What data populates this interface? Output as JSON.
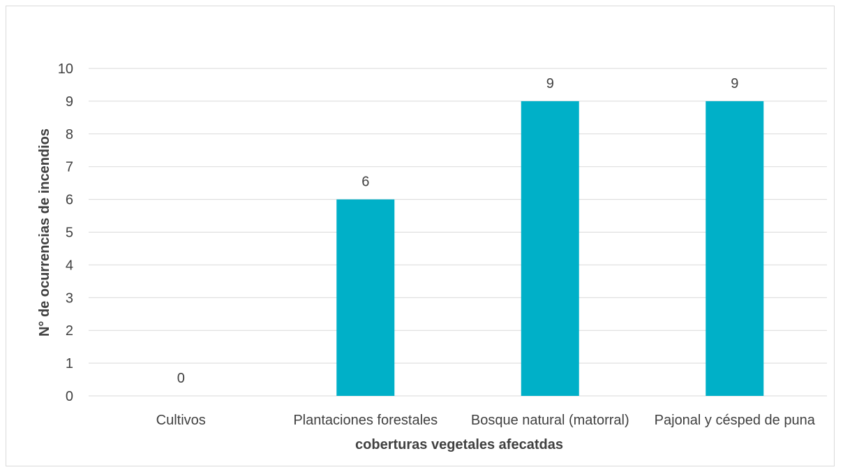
{
  "chart_data": {
    "type": "bar",
    "categories": [
      "Cultivos",
      "Plantaciones forestales",
      "Bosque natural (matorral)",
      "Pajonal y césped de puna"
    ],
    "values": [
      0,
      6,
      9,
      9
    ],
    "xlabel": "coberturas vegetales afecatdas",
    "ylabel": "N° de ocurrencias de incendios",
    "ylim": [
      0,
      10
    ],
    "yticks": [
      "0",
      "1",
      "2",
      "3",
      "4",
      "5",
      "6",
      "7",
      "8",
      "9",
      "10"
    ],
    "grid": true,
    "bar_color": "#00B0C8",
    "gridline_color": "#d9d9d9",
    "text_color": "#404040"
  }
}
